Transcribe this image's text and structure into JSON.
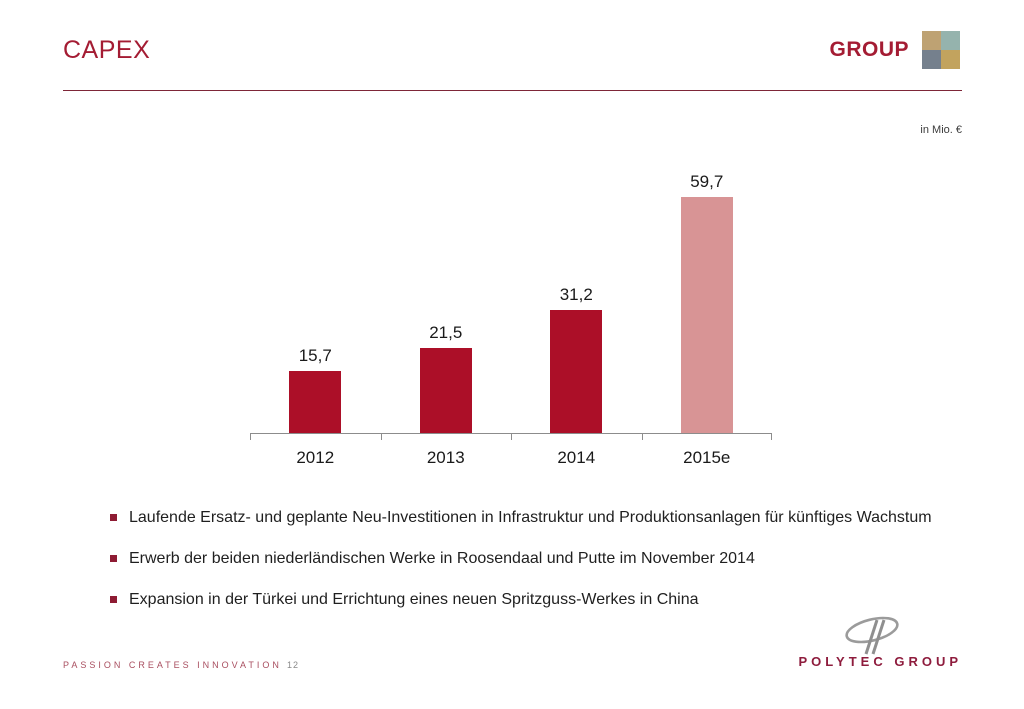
{
  "slide": {
    "title": "CAPEX",
    "unit_note": "in Mio. €"
  },
  "header_brand": {
    "word": "GROUP"
  },
  "chart_data": {
    "type": "bar",
    "title": "CAPEX",
    "unit": "in Mio. €",
    "categories": [
      "2012",
      "2013",
      "2014",
      "2015e"
    ],
    "values": [
      15.7,
      21.5,
      31.2,
      59.7
    ],
    "value_labels": [
      "15,7",
      "21,5",
      "31,2",
      "59,7"
    ],
    "bar_colors": [
      "#AC0F28",
      "#AC0F28",
      "#AC0F28",
      "#D89495"
    ],
    "ylim": [
      0,
      72
    ],
    "grid": false,
    "legend": "none",
    "xlabel": "",
    "ylabel": ""
  },
  "bullets": [
    {
      "text": "Laufende Ersatz- und geplante Neu-Investitionen in Infrastruktur und Produktionsanlagen für künftiges Wachstum"
    },
    {
      "text": "Erwerb der beiden niederländischen Werke in Roosendaal und Putte im November 2014"
    },
    {
      "text": "Expansion in der Türkei und Errichtung eines neuen Spritzguss-Werkes in China"
    }
  ],
  "footer": {
    "tagline": "PASSION CREATES INNOVATION",
    "page_number": "12",
    "logo_text": "POLYTEC GROUP"
  },
  "colors": {
    "brand_red": "#A41C33",
    "bar_red": "#AC0F28",
    "bar_light": "#D89495",
    "rule_red": "#7E2638",
    "axis_gray": "#8c8c8c",
    "logo_quadrants": [
      "#BEA273",
      "#95B3AD",
      "#75808D",
      "#C2A35E"
    ]
  }
}
